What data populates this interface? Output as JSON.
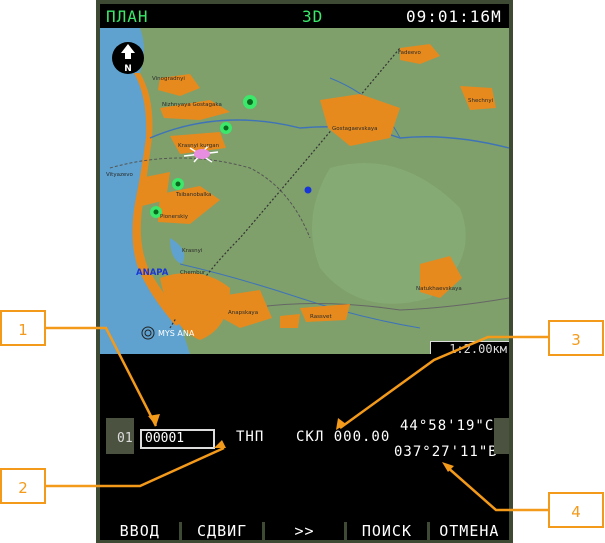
{
  "header": {
    "mode": "ПЛАН",
    "view": "3D",
    "clock": "09:01:16М"
  },
  "map": {
    "compass_letter": "N",
    "scale": "1:2.00км",
    "towns": [
      {
        "label": "Fadeevo"
      },
      {
        "label": "Vinogradnyi"
      },
      {
        "label": "Nizhnyaya Gostagaka"
      },
      {
        "label": "Gostagaevskaya"
      },
      {
        "label": "Shechnyi"
      },
      {
        "label": "Krasnyi kurgan"
      },
      {
        "label": "Vityazevo"
      },
      {
        "label": "Tsibanobalka"
      },
      {
        "label": "Pionerskiy"
      },
      {
        "label": "Krasnyi"
      },
      {
        "label": "ANAPA"
      },
      {
        "label": "Chembur"
      },
      {
        "label": "Anapskaya"
      },
      {
        "label": "Rassvet"
      },
      {
        "label": "Natukhaevskaya"
      },
      {
        "label": "MYS ANA"
      }
    ]
  },
  "panel": {
    "channel": "01",
    "waypoint": "00001",
    "type": "ТНП",
    "heading": "СКЛ 000.00",
    "lat": "44°58'19\"С",
    "lon": "037°27'11\"В"
  },
  "softkeys": [
    "ВВОД",
    "СДВИГ",
    ">>",
    "ПОИСК",
    "ОТМЕНА"
  ],
  "callouts": [
    "1",
    "2",
    "3",
    "4"
  ],
  "colors": {
    "accent": "#f39a1b",
    "map_land": "#7a9b66",
    "map_sea": "#5fa2cf",
    "town": "#e68a1e",
    "hud_green": "#3be86a"
  }
}
